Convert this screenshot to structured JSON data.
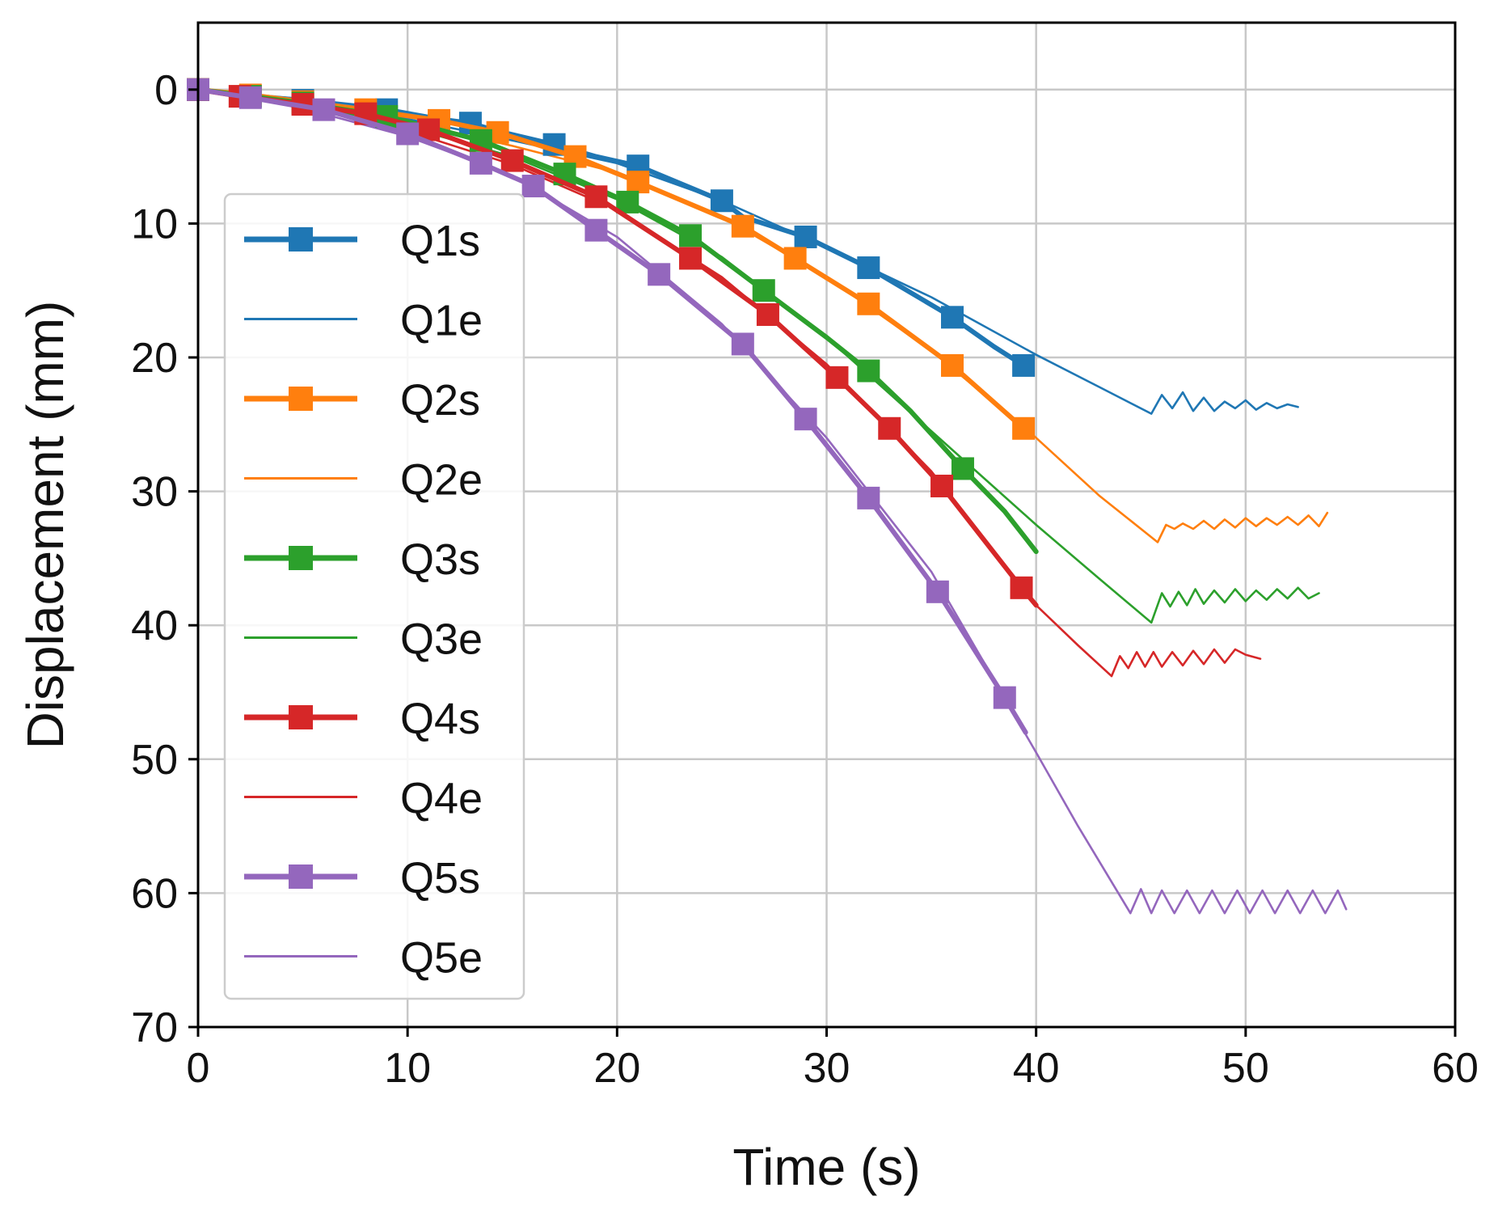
{
  "chart_data": {
    "type": "line",
    "title": "",
    "xlabel": "Time (s)",
    "ylabel": "Displacement (mm)",
    "xlim": [
      0,
      60
    ],
    "ylim": [
      70,
      -5
    ],
    "y_inverted": true,
    "grid": true,
    "legend_placement": "left",
    "x_ticks": [
      "0",
      "10",
      "20",
      "30",
      "40",
      "50",
      "60"
    ],
    "y_ticks": [
      "0",
      "10",
      "20",
      "30",
      "40",
      "50",
      "60",
      "70"
    ],
    "series": [
      {
        "name": "Q1s",
        "style": "simulation-marker",
        "color": "#1f77b4",
        "x": [
          0,
          1.7,
          2.5,
          5,
          8,
          9,
          11.5,
          13,
          14.3,
          17,
          19,
          21,
          25,
          26,
          29,
          32,
          36,
          38,
          39.4
        ],
        "y": [
          0,
          0.3,
          0.5,
          0.8,
          1.3,
          1.5,
          2.2,
          2.5,
          3.1,
          4.1,
          5,
          5.7,
          8.3,
          9.5,
          11,
          13.3,
          17,
          19.2,
          20.6
        ],
        "markers_x": [
          0,
          2.5,
          5,
          9,
          13,
          17,
          21,
          25,
          29,
          32,
          36,
          39.4
        ],
        "markers_y": [
          0,
          0.5,
          0.8,
          1.5,
          2.5,
          4.1,
          5.7,
          8.3,
          11,
          13.3,
          17,
          20.6
        ]
      },
      {
        "name": "Q1e",
        "style": "experiment-line",
        "color": "#1f77b4",
        "x": [
          0,
          5,
          10,
          15,
          20,
          25,
          30,
          35,
          40,
          43,
          45.5,
          46,
          46.5,
          47,
          47.5,
          48,
          48.5,
          49,
          49.5,
          50,
          50.5,
          51,
          51.5,
          52,
          52.5
        ],
        "y": [
          0,
          0.7,
          2.2,
          3.8,
          5.5,
          8.3,
          11.8,
          15.5,
          19.8,
          22.2,
          24.2,
          22.8,
          23.8,
          22.6,
          24,
          23,
          24,
          23.3,
          23.8,
          23.2,
          23.9,
          23.4,
          23.8,
          23.5,
          23.7
        ]
      },
      {
        "name": "Q2s",
        "style": "simulation-marker",
        "color": "#ff7f0e",
        "x": [
          0,
          2.5,
          5,
          8,
          11.5,
          14.3,
          18,
          21,
          26,
          28.5,
          32,
          36,
          39.4
        ],
        "y": [
          0,
          0.4,
          0.9,
          1.5,
          2.3,
          3.2,
          5,
          6.9,
          10.2,
          12.6,
          16,
          20.6,
          25.3
        ],
        "markers_x": [
          0,
          2.5,
          5,
          8,
          11.5,
          14.3,
          18,
          21,
          26,
          28.5,
          32,
          36,
          39.4
        ],
        "markers_y": [
          0,
          0.4,
          0.9,
          1.5,
          2.3,
          3.2,
          5,
          6.9,
          10.2,
          12.6,
          16,
          20.6,
          25.3
        ]
      },
      {
        "name": "Q2e",
        "style": "experiment-line",
        "color": "#ff7f0e",
        "x": [
          0,
          5,
          10,
          15,
          20,
          25,
          30,
          35,
          40,
          43,
          45.8,
          46.2,
          46.6,
          47,
          47.5,
          48,
          48.5,
          49,
          49.5,
          50,
          50.5,
          51,
          51.5,
          52,
          52.5,
          53,
          53.5,
          53.9
        ],
        "y": [
          0,
          0.9,
          2.4,
          4.2,
          6.2,
          9.5,
          14,
          19.5,
          26,
          30.3,
          33.8,
          32.5,
          32.8,
          32.4,
          32.8,
          32.2,
          32.8,
          32.1,
          32.7,
          32,
          32.6,
          32,
          32.5,
          31.9,
          32.5,
          31.8,
          32.6,
          31.6
        ]
      },
      {
        "name": "Q3s",
        "style": "simulation-marker",
        "color": "#2ca02c",
        "x": [
          0,
          2.5,
          5,
          9,
          13.5,
          17.5,
          20.5,
          23.5,
          27,
          30,
          32,
          34,
          36.5,
          38.5,
          40
        ],
        "y": [
          0,
          0.5,
          1,
          2,
          3.8,
          6.3,
          8.4,
          10.9,
          15,
          18.5,
          21,
          24,
          28.3,
          31.5,
          34.5
        ],
        "markers_x": [
          0,
          2.5,
          5,
          9,
          13.5,
          17.5,
          20.5,
          23.5,
          27,
          32,
          36.5
        ],
        "markers_y": [
          0,
          0.5,
          1,
          2,
          3.8,
          6.3,
          8.4,
          10.9,
          15,
          21,
          28.3
        ]
      },
      {
        "name": "Q3e",
        "style": "experiment-line",
        "color": "#2ca02c",
        "x": [
          0,
          5,
          10,
          15,
          20,
          25,
          30,
          35,
          40,
          43,
          45.5,
          46,
          46.4,
          46.8,
          47.2,
          47.6,
          48,
          48.5,
          49,
          49.5,
          50,
          50.5,
          51,
          51.5,
          52,
          52.5,
          53,
          53.5
        ],
        "y": [
          0,
          1,
          2.8,
          5,
          8.2,
          12.5,
          18.5,
          25.5,
          32.5,
          36.5,
          39.8,
          37.6,
          38.6,
          37.5,
          38.5,
          37.3,
          38.4,
          37.4,
          38.3,
          37.3,
          38.2,
          37.4,
          38.1,
          37.3,
          38,
          37.2,
          38,
          37.6
        ]
      },
      {
        "name": "Q4s",
        "style": "simulation-marker",
        "color": "#d62728",
        "x": [
          0,
          2,
          5,
          8,
          11,
          15,
          19,
          23.5,
          27.2,
          30.5,
          33,
          35.5,
          39.3,
          40
        ],
        "y": [
          0,
          0.5,
          1.1,
          1.8,
          3,
          5.3,
          8,
          12.6,
          16.8,
          21.5,
          25.3,
          29.6,
          37.2,
          38.5
        ],
        "markers_x": [
          0,
          2,
          5,
          8,
          11,
          15,
          19,
          23.5,
          27.2,
          30.5,
          33,
          35.5,
          39.3
        ],
        "markers_y": [
          0,
          0.5,
          1.1,
          1.8,
          3,
          5.3,
          8,
          12.6,
          16.8,
          21.5,
          25.3,
          29.6,
          37.2
        ]
      },
      {
        "name": "Q4e",
        "style": "experiment-line",
        "color": "#d62728",
        "x": [
          0,
          5,
          10,
          15,
          20,
          25,
          30,
          35,
          40,
          42,
          43.6,
          44,
          44.4,
          44.8,
          45.2,
          45.6,
          46,
          46.5,
          47,
          47.5,
          48,
          48.5,
          49,
          49.5,
          50,
          50.7
        ],
        "y": [
          0,
          1.2,
          3.1,
          5.6,
          9,
          14,
          20.5,
          28.5,
          38.5,
          41.5,
          43.8,
          42.3,
          43.2,
          42,
          43.1,
          42,
          43.1,
          42,
          43,
          41.9,
          42.9,
          41.8,
          42.8,
          41.8,
          42.2,
          42.5
        ]
      },
      {
        "name": "Q5s",
        "style": "simulation-marker",
        "color": "#9467bd",
        "x": [
          0,
          2.5,
          6,
          10,
          13.5,
          16,
          19,
          22,
          26,
          29,
          32,
          35.3,
          38.5,
          39.5
        ],
        "y": [
          0,
          0.6,
          1.5,
          3.3,
          5.5,
          7.2,
          10.5,
          13.8,
          19,
          24.6,
          30.5,
          37.5,
          45.4,
          48
        ],
        "markers_x": [
          0,
          2.5,
          6,
          10,
          13.5,
          16,
          19,
          22,
          26,
          29,
          32,
          35.3,
          38.5
        ],
        "markers_y": [
          0,
          0.6,
          1.5,
          3.3,
          5.5,
          7.2,
          10.5,
          13.8,
          19,
          24.6,
          30.5,
          37.5,
          45.4
        ]
      },
      {
        "name": "Q5e",
        "style": "experiment-line",
        "color": "#9467bd",
        "x": [
          0,
          5,
          10,
          15,
          20,
          25,
          30,
          35,
          40,
          42,
          44.5,
          45,
          45.5,
          46,
          46.6,
          47.2,
          47.8,
          48.4,
          49,
          49.6,
          50.2,
          50.8,
          51.4,
          52,
          52.6,
          53.2,
          53.8,
          54.4,
          54.8
        ],
        "y": [
          0,
          1.4,
          3.5,
          6.4,
          11,
          17.5,
          26,
          36,
          49.5,
          55,
          61.5,
          59.7,
          61.5,
          59.8,
          61.5,
          59.8,
          61.5,
          59.8,
          61.5,
          59.8,
          61.5,
          59.8,
          61.5,
          59.8,
          61.5,
          59.8,
          61.5,
          59.8,
          61.2
        ]
      }
    ]
  }
}
